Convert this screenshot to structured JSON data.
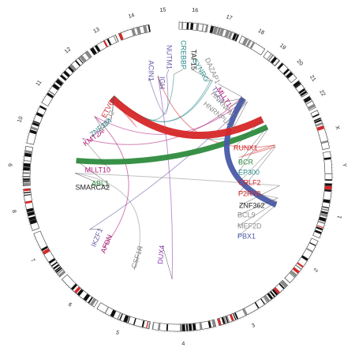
{
  "chromosomes": [
    {
      "name": "1",
      "angle": 104
    },
    {
      "name": "2",
      "angle": 124
    },
    {
      "name": "3",
      "angle": 153
    },
    {
      "name": "4",
      "angle": 178
    },
    {
      "name": "5",
      "angle": 201
    },
    {
      "name": "6",
      "angle": 220
    },
    {
      "name": "7",
      "angle": 240
    },
    {
      "name": "8",
      "angle": 258
    },
    {
      "name": "9",
      "angle": 274
    },
    {
      "name": "10",
      "angle": 290
    },
    {
      "name": "11",
      "angle": 304
    },
    {
      "name": "12",
      "angle": 319
    },
    {
      "name": "13",
      "angle": 331
    },
    {
      "name": "14",
      "angle": 344
    },
    {
      "name": "15",
      "angle": 355
    },
    {
      "name": "16",
      "angle": 6
    },
    {
      "name": "17",
      "angle": 18
    },
    {
      "name": "18",
      "angle": 30
    },
    {
      "name": "19",
      "angle": 39
    },
    {
      "name": "20",
      "angle": 47
    },
    {
      "name": "21",
      "angle": 54
    },
    {
      "name": "22",
      "angle": 60
    },
    {
      "name": "X",
      "angle": 73
    },
    {
      "name": "Y",
      "angle": 86
    }
  ],
  "chromosome_boundaries": [
    0,
    12,
    24,
    35,
    42,
    51,
    58,
    64,
    67,
    80,
    92,
    114,
    134,
    165,
    190,
    212,
    229,
    249,
    266,
    282,
    298,
    310,
    325,
    337,
    350
  ],
  "genes": [
    {
      "name": "ETV6",
      "color": "#d62728",
      "anchor": 320
    },
    {
      "name": "FOXJ2",
      "color": "#8c8c8c",
      "anchor": 321
    },
    {
      "name": "ZNF384",
      "color": "#2a8a8a",
      "anchor": 322
    },
    {
      "name": "KMT2A",
      "color": "#b0187a",
      "anchor": 306
    },
    {
      "name": "MLLT10",
      "color": "#b0187a",
      "anchor": 292
    },
    {
      "name": "ABL1",
      "color": "#2e8b3e",
      "anchor": 279
    },
    {
      "name": "SMARCA2",
      "color": "#222222",
      "anchor": 272
    },
    {
      "name": "IKZF1",
      "color": "#6a5aa8",
      "anchor": 239
    },
    {
      "name": "AFDN",
      "color": "#b0187a",
      "anchor": 226
    },
    {
      "name": "CSF1R",
      "color": "#8c8c8c",
      "anchor": 205
    },
    {
      "name": "DUX4",
      "color": "#8a3ab0",
      "anchor": 183
    },
    {
      "name": "ACIN1",
      "color": "#6a5aa8",
      "anchor": 344
    },
    {
      "name": "IGH",
      "color": "#6a5aa8",
      "anchor": 349
    },
    {
      "name": "NUTM1",
      "color": "#6a5aa8",
      "anchor": 354
    },
    {
      "name": "CREBBP",
      "color": "#2a8a8a",
      "anchor": 358
    },
    {
      "name": "TAF15",
      "color": "#222222",
      "anchor": 19
    },
    {
      "name": "SYNRG",
      "color": "#2a8a8a",
      "anchor": 20
    },
    {
      "name": "DAZAP1",
      "color": "#8c8c8c",
      "anchor": 39
    },
    {
      "name": "TCF3",
      "color": "#6a5aa8",
      "anchor": 40
    },
    {
      "name": "MLLT1",
      "color": "#b0187a",
      "anchor": 41
    },
    {
      "name": "HNRNPM",
      "color": "#8c8c8c",
      "anchor": 42
    },
    {
      "name": "HNRNPUL1",
      "color": "#8c8c8c",
      "anchor": 43
    },
    {
      "name": "RUNX1",
      "color": "#d62728",
      "anchor": 56
    },
    {
      "name": "BCR",
      "color": "#2e8b3e",
      "anchor": 61
    },
    {
      "name": "EP300",
      "color": "#2a8a8a",
      "anchor": 62
    },
    {
      "name": "CRLF2",
      "color": "#d62728",
      "anchor": 72
    },
    {
      "name": "P2RY8",
      "color": "#d62728",
      "anchor": 73
    },
    {
      "name": "ZNF362",
      "color": "#222222",
      "anchor": 95
    },
    {
      "name": "BCL9",
      "color": "#8c8c8c",
      "anchor": 102
    },
    {
      "name": "MEF2D",
      "color": "#8c8c8c",
      "anchor": 104
    },
    {
      "name": "PBX1",
      "color": "#4a5aa8",
      "anchor": 106
    }
  ],
  "fusions": [
    {
      "from": "ETV6",
      "to": "RUNX1",
      "color": "#d62728",
      "width": 9
    },
    {
      "from": "ABL1",
      "to": "BCR",
      "color": "#2e8b3e",
      "width": 7
    },
    {
      "from": "TCF3",
      "to": "PBX1",
      "color": "#4a5aa8",
      "width": 7
    },
    {
      "from": "KMT2A",
      "to": "MLLT1",
      "color": "#b0187a",
      "width": 1
    },
    {
      "from": "ZNF384",
      "to": "EP300",
      "color": "#2a8a8a",
      "width": 1
    },
    {
      "from": "ZNF384",
      "to": "TAF15",
      "color": "#2a8a8a",
      "width": 1
    },
    {
      "from": "ZNF384",
      "to": "CREBBP",
      "color": "#2a8a8a",
      "width": 1
    },
    {
      "from": "ZNF384",
      "to": "SYNRG",
      "color": "#2a8a8a",
      "width": 1
    },
    {
      "from": "MLLT10",
      "to": "DAZAP1",
      "color": "#b0187a",
      "width": 1
    },
    {
      "from": "IGH",
      "to": "DUX4",
      "color": "#8a3ab0",
      "width": 1
    },
    {
      "from": "IGH",
      "to": "CRLF2",
      "color": "#d62728",
      "width": 1
    },
    {
      "from": "ACIN1",
      "to": "NUTM1",
      "color": "#6a5aa8",
      "width": 1
    },
    {
      "from": "P2RY8",
      "to": "CRLF2",
      "color": "#d62728",
      "width": 1
    },
    {
      "from": "IKZF1",
      "to": "HNRNPUL1",
      "color": "#6a5aa8",
      "width": 1
    },
    {
      "from": "AFDN",
      "to": "KMT2A",
      "color": "#b0187a",
      "width": 1
    },
    {
      "from": "CSF1R",
      "to": "SMARCA2",
      "color": "#8c8c8c",
      "width": 1
    },
    {
      "from": "MEF2D",
      "to": "BCL9",
      "color": "#8c8c8c",
      "width": 1
    },
    {
      "from": "MEF2D",
      "to": "HNRNPM",
      "color": "#8c8c8c",
      "width": 1
    },
    {
      "from": "ZNF362",
      "to": "SMARCA2",
      "color": "#8c8c8c",
      "width": 1
    },
    {
      "from": "ETV6",
      "to": "FOXJ2",
      "color": "#d62728",
      "width": 1
    }
  ]
}
